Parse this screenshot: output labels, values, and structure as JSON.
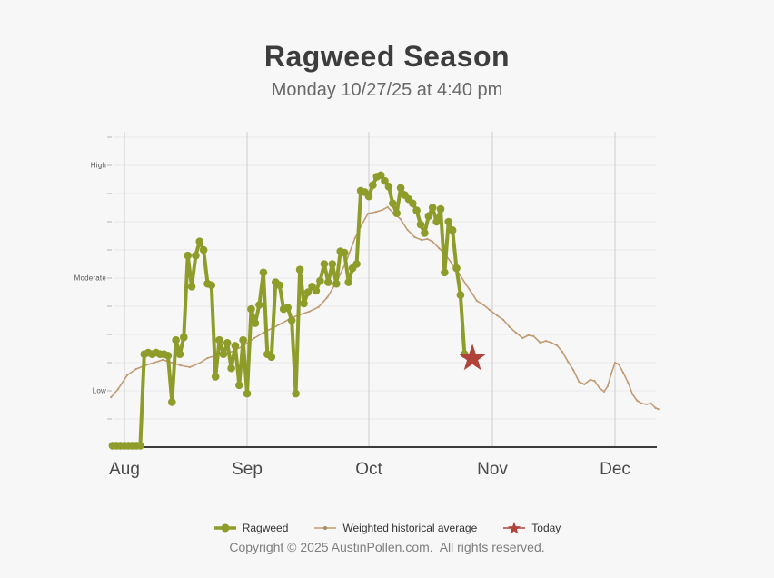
{
  "header": {
    "title": "Ragweed Season",
    "subtitle": "Monday 10/27/25 at 4:40 pm"
  },
  "footer": {
    "copyright": "Copyright © 2025 AustinPollen.com.  All rights reserved."
  },
  "legend": {
    "items": [
      {
        "id": "ragweed",
        "label": "Ragweed",
        "marker": "circle",
        "color": "#8e9c2a"
      },
      {
        "id": "historical",
        "label": "Weighted historical average",
        "marker": "dot",
        "color": "#c19b74"
      },
      {
        "id": "today",
        "label": "Today",
        "marker": "star",
        "color": "#b2423c"
      }
    ]
  },
  "chart_data": {
    "type": "line",
    "title": "Ragweed Season",
    "subtitle": "Monday 10/27/25 at 4:40 pm",
    "x_axis": {
      "tick_labels": [
        "Aug",
        "Sep",
        "Oct",
        "Nov",
        "Dec"
      ],
      "note": "daily pollen levels, late July through December"
    },
    "y_axis": {
      "range": [
        0,
        11
      ],
      "gridline_step": 1,
      "band_labels": [
        {
          "label": "High",
          "level": 10
        },
        {
          "label": "Moderate",
          "level": 6
        },
        {
          "label": "Low",
          "level": 2
        }
      ]
    },
    "colors": {
      "ragweed": "#8e9c2a",
      "historical": "#c19b74",
      "today_star": "#b2423c",
      "axis": "#3c3c3c",
      "grid_vertical": "#cdcdcd",
      "grid_horizontal": "#e8e8e8",
      "tick": "#b5b5b5",
      "background": "#f7f7f7"
    },
    "series": [
      {
        "name": "Ragweed",
        "color": "#8e9c2a",
        "marker": "circle",
        "start_day_offset_from_aug1": -3,
        "daily_values": [
          0.05,
          0.05,
          0.05,
          0.05,
          0.05,
          0.05,
          0.05,
          0.05,
          3.3,
          3.35,
          3.3,
          3.35,
          3.3,
          3.3,
          3.25,
          1.6,
          3.8,
          3.3,
          3.9,
          6.8,
          5.7,
          6.8,
          7.3,
          7.0,
          5.8,
          5.75,
          2.5,
          3.8,
          3.3,
          3.7,
          2.8,
          3.6,
          2.2,
          3.8,
          1.9,
          4.9,
          4.4,
          5.05,
          6.2,
          3.3,
          3.2,
          5.85,
          5.75,
          4.9,
          4.95,
          4.5,
          1.9,
          6.3,
          5.1,
          5.5,
          5.7,
          5.55,
          5.9,
          6.5,
          5.85,
          6.5,
          5.8,
          6.95,
          6.9,
          5.85,
          6.35,
          6.5,
          9.1,
          9.05,
          8.9,
          9.3,
          9.6,
          9.65,
          9.45,
          9.25,
          8.65,
          8.3,
          9.2,
          8.95,
          8.8,
          8.65,
          8.4,
          7.9,
          7.6,
          8.2,
          8.5,
          8.0,
          8.45,
          6.2,
          8.0,
          7.7,
          6.35,
          5.4,
          3.3
        ]
      },
      {
        "name": "Weighted historical average",
        "color": "#c19b74",
        "marker": "dot",
        "points_day_value": [
          [
            -3.4,
            1.77
          ],
          [
            -1.6,
            2.06
          ],
          [
            0.7,
            2.55
          ],
          [
            2.9,
            2.77
          ],
          [
            5.2,
            2.9
          ],
          [
            7.5,
            3.0
          ],
          [
            9.7,
            3.1
          ],
          [
            12,
            3.0
          ],
          [
            14.2,
            2.9
          ],
          [
            16.5,
            2.84
          ],
          [
            18.8,
            2.97
          ],
          [
            21,
            3.16
          ],
          [
            23.3,
            3.26
          ],
          [
            25.5,
            3.32
          ],
          [
            27.8,
            3.42
          ],
          [
            30.5,
            3.65
          ],
          [
            32.8,
            3.87
          ],
          [
            35,
            4.06
          ],
          [
            37.3,
            4.23
          ],
          [
            39.5,
            4.39
          ],
          [
            41.8,
            4.58
          ],
          [
            44.1,
            4.71
          ],
          [
            46.3,
            4.81
          ],
          [
            48.6,
            4.97
          ],
          [
            50.8,
            5.32
          ],
          [
            53.1,
            5.87
          ],
          [
            55.4,
            6.58
          ],
          [
            57.6,
            7.42
          ],
          [
            59.4,
            7.94
          ],
          [
            60.8,
            8.29
          ],
          [
            62.8,
            8.35
          ],
          [
            64.4,
            8.42
          ],
          [
            65.7,
            8.52
          ],
          [
            67.3,
            8.29
          ],
          [
            68.9,
            8.1
          ],
          [
            70.7,
            7.71
          ],
          [
            72.5,
            7.45
          ],
          [
            74.3,
            7.35
          ],
          [
            75.7,
            7.39
          ],
          [
            77,
            7.29
          ],
          [
            78.6,
            7.06
          ],
          [
            80.2,
            6.84
          ],
          [
            82,
            6.48
          ],
          [
            83.8,
            6.13
          ],
          [
            85.4,
            5.77
          ],
          [
            86.5,
            5.55
          ],
          [
            88.1,
            5.19
          ],
          [
            89.7,
            5.06
          ],
          [
            91.3,
            4.87
          ],
          [
            93.1,
            4.68
          ],
          [
            94.7,
            4.52
          ],
          [
            96.2,
            4.26
          ],
          [
            97.8,
            4.06
          ],
          [
            99.4,
            3.87
          ],
          [
            100.8,
            3.97
          ],
          [
            102.1,
            3.94
          ],
          [
            103.7,
            3.71
          ],
          [
            105.1,
            3.77
          ],
          [
            106.4,
            3.71
          ],
          [
            107.8,
            3.61
          ],
          [
            109.1,
            3.39
          ],
          [
            110.5,
            3.03
          ],
          [
            111.8,
            2.74
          ],
          [
            113.2,
            2.32
          ],
          [
            114.5,
            2.23
          ],
          [
            115.9,
            2.39
          ],
          [
            117,
            2.35
          ],
          [
            118.2,
            2.1
          ],
          [
            119.3,
            1.97
          ],
          [
            120.2,
            2.16
          ],
          [
            121.1,
            2.61
          ],
          [
            122,
            3.0
          ],
          [
            122.9,
            2.94
          ],
          [
            124,
            2.65
          ],
          [
            125.2,
            2.29
          ],
          [
            126.3,
            1.87
          ],
          [
            127.4,
            1.65
          ],
          [
            128.5,
            1.55
          ],
          [
            129.7,
            1.52
          ],
          [
            130.8,
            1.55
          ],
          [
            131.9,
            1.39
          ],
          [
            132.6,
            1.35
          ]
        ]
      },
      {
        "name": "Today",
        "color": "#b2423c",
        "marker": "star",
        "date": "10/27/25",
        "point_day_value": [
          87,
          3.15
        ]
      }
    ]
  }
}
